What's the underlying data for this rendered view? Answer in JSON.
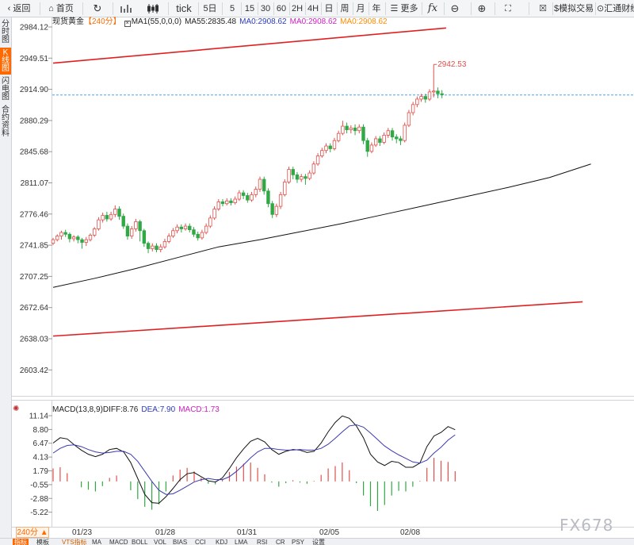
{
  "toolbar": {
    "back": "返回",
    "home": "首页",
    "tick": "tick",
    "periods": [
      "5日",
      "5",
      "15",
      "30",
      "60",
      "2H",
      "4H",
      "日",
      "周",
      "月",
      "年"
    ],
    "more": "更多",
    "sim_trade": "模拟交易",
    "exchange": "汇通财经"
  },
  "sidetabs": [
    "分时图",
    "K线图",
    "闪电图",
    "合约资料"
  ],
  "main_info": {
    "symbol": "现货黄金",
    "period": "【240分】",
    "ma_params": "MA1(55,0,0,0)",
    "ma55": "MA55:2835.48",
    "ma0_a": "MA0:2908.62",
    "ma0_b": "MA0:2908.62",
    "ma0_c": "MA0:2908.62"
  },
  "macd_info": {
    "title": "MACD(13,8,9)",
    "diff": "DIFF:8.76",
    "dea": "DEA:7.90",
    "macd": "MACD:1.73"
  },
  "date_labels": [
    "01/23",
    "01/28",
    "01/31",
    "02/05",
    "02/08"
  ],
  "period_badge": "240分 ▲",
  "bottom_tabs": [
    "指标",
    "模板",
    "VTS指标",
    "MA",
    "MACD",
    "BOLL",
    "VOL",
    "BIAS",
    "CCI",
    "KDJ",
    "LMA",
    "RSI",
    "CR",
    "PSY",
    "设置"
  ],
  "watermark": "FX678",
  "colors": {
    "up": "#e0504a",
    "down": "#31a846",
    "ma55": "#111111",
    "channel": "#e02020",
    "dashed": "#4aa3e8",
    "dea": "#3a3ab0",
    "macd_label": "#d020c0",
    "ma0": "#ff8c00"
  },
  "chart_data": [
    {
      "type": "candlestick",
      "title": "现货黄金",
      "y_ticks": [
        2984.12,
        2949.51,
        2914.9,
        2880.29,
        2845.68,
        2811.07,
        2776.46,
        2741.85,
        2707.25,
        2672.64,
        2638.03,
        2603.42
      ],
      "ylim": [
        2582,
        2998
      ],
      "x_labels": [
        "01/23",
        "01/28",
        "01/31",
        "02/05",
        "02/08"
      ],
      "annotation": {
        "label": "2942.53",
        "value": 2942.53
      },
      "last_price": 2908.62,
      "channel": {
        "upper": [
          [
            0,
            2944
          ],
          [
            95,
            2983
          ]
        ],
        "lower": [
          [
            0,
            2641
          ],
          [
            128,
            2679
          ]
        ]
      },
      "candles": [
        [
          2744,
          2748,
          2742,
          2750
        ],
        [
          2748,
          2752,
          2746,
          2754
        ],
        [
          2752,
          2756,
          2748,
          2758
        ],
        [
          2756,
          2754,
          2751,
          2759
        ],
        [
          2754,
          2749,
          2745,
          2756
        ],
        [
          2749,
          2751,
          2746,
          2753
        ],
        [
          2751,
          2748,
          2744,
          2753
        ],
        [
          2748,
          2745,
          2738,
          2750
        ],
        [
          2745,
          2748,
          2741,
          2751
        ],
        [
          2748,
          2753,
          2746,
          2755
        ],
        [
          2753,
          2760,
          2751,
          2762
        ],
        [
          2760,
          2770,
          2758,
          2773
        ],
        [
          2770,
          2775,
          2767,
          2778
        ],
        [
          2775,
          2771,
          2768,
          2779
        ],
        [
          2771,
          2776,
          2769,
          2779
        ],
        [
          2776,
          2782,
          2773,
          2786
        ],
        [
          2782,
          2774,
          2770,
          2785
        ],
        [
          2774,
          2763,
          2760,
          2777
        ],
        [
          2763,
          2752,
          2748,
          2766
        ],
        [
          2752,
          2760,
          2749,
          2763
        ],
        [
          2760,
          2768,
          2757,
          2771
        ],
        [
          2768,
          2758,
          2746,
          2770
        ],
        [
          2758,
          2744,
          2740,
          2760
        ],
        [
          2744,
          2738,
          2733,
          2746
        ],
        [
          2738,
          2741,
          2735,
          2744
        ],
        [
          2741,
          2737,
          2734,
          2744
        ],
        [
          2737,
          2740,
          2734,
          2743
        ],
        [
          2740,
          2746,
          2738,
          2749
        ],
        [
          2746,
          2752,
          2744,
          2755
        ],
        [
          2752,
          2758,
          2750,
          2761
        ],
        [
          2758,
          2762,
          2755,
          2765
        ],
        [
          2762,
          2760,
          2756,
          2765
        ],
        [
          2760,
          2763,
          2758,
          2766
        ],
        [
          2763,
          2759,
          2756,
          2766
        ],
        [
          2759,
          2754,
          2751,
          2762
        ],
        [
          2754,
          2750,
          2747,
          2757
        ],
        [
          2750,
          2756,
          2748,
          2759
        ],
        [
          2756,
          2763,
          2754,
          2766
        ],
        [
          2763,
          2772,
          2761,
          2775
        ],
        [
          2772,
          2782,
          2770,
          2785
        ],
        [
          2782,
          2790,
          2780,
          2793
        ],
        [
          2790,
          2788,
          2785,
          2793
        ],
        [
          2788,
          2791,
          2786,
          2794
        ],
        [
          2791,
          2789,
          2786,
          2794
        ],
        [
          2789,
          2793,
          2787,
          2796
        ],
        [
          2793,
          2800,
          2791,
          2803
        ],
        [
          2800,
          2797,
          2793,
          2803
        ],
        [
          2797,
          2792,
          2789,
          2800
        ],
        [
          2792,
          2798,
          2790,
          2801
        ],
        [
          2798,
          2804,
          2795,
          2807
        ],
        [
          2804,
          2815,
          2801,
          2818
        ],
        [
          2815,
          2802,
          2798,
          2818
        ],
        [
          2802,
          2788,
          2784,
          2805
        ],
        [
          2788,
          2776,
          2772,
          2791
        ],
        [
          2776,
          2785,
          2773,
          2788
        ],
        [
          2785,
          2798,
          2782,
          2801
        ],
        [
          2798,
          2812,
          2796,
          2815
        ],
        [
          2812,
          2826,
          2810,
          2829
        ],
        [
          2826,
          2820,
          2815,
          2829
        ],
        [
          2820,
          2815,
          2811,
          2823
        ],
        [
          2815,
          2818,
          2812,
          2821
        ],
        [
          2818,
          2816,
          2809,
          2821
        ],
        [
          2816,
          2822,
          2814,
          2825
        ],
        [
          2822,
          2832,
          2820,
          2835
        ],
        [
          2832,
          2841,
          2830,
          2844
        ],
        [
          2841,
          2847,
          2839,
          2850
        ],
        [
          2847,
          2852,
          2844,
          2855
        ],
        [
          2852,
          2849,
          2845,
          2855
        ],
        [
          2849,
          2858,
          2847,
          2861
        ],
        [
          2858,
          2866,
          2856,
          2869
        ],
        [
          2866,
          2874,
          2864,
          2880
        ],
        [
          2874,
          2870,
          2866,
          2878
        ],
        [
          2870,
          2872,
          2866,
          2875
        ],
        [
          2872,
          2869,
          2864,
          2876
        ],
        [
          2869,
          2873,
          2866,
          2876
        ],
        [
          2873,
          2858,
          2854,
          2876
        ],
        [
          2858,
          2846,
          2840,
          2861
        ],
        [
          2846,
          2853,
          2844,
          2856
        ],
        [
          2853,
          2860,
          2851,
          2863
        ],
        [
          2860,
          2856,
          2852,
          2863
        ],
        [
          2856,
          2864,
          2854,
          2867
        ],
        [
          2864,
          2869,
          2861,
          2872
        ],
        [
          2869,
          2862,
          2858,
          2872
        ],
        [
          2862,
          2860,
          2855,
          2865
        ],
        [
          2860,
          2858,
          2853,
          2863
        ],
        [
          2858,
          2875,
          2856,
          2878
        ],
        [
          2875,
          2889,
          2873,
          2892
        ],
        [
          2889,
          2898,
          2886,
          2901
        ],
        [
          2898,
          2904,
          2895,
          2907
        ],
        [
          2904,
          2907,
          2901,
          2910
        ],
        [
          2907,
          2904,
          2900,
          2910
        ],
        [
          2904,
          2912,
          2902,
          2915
        ],
        [
          2912,
          2913,
          2906,
          2942.53
        ],
        [
          2913,
          2910,
          2905,
          2917
        ],
        [
          2910,
          2909,
          2905,
          2914
        ]
      ],
      "ma55": [
        [
          0,
          2695
        ],
        [
          10,
          2705
        ],
        [
          20,
          2716
        ],
        [
          30,
          2728
        ],
        [
          40,
          2740
        ],
        [
          50,
          2748
        ],
        [
          60,
          2757
        ],
        [
          70,
          2766
        ],
        [
          80,
          2776
        ],
        [
          90,
          2786
        ],
        [
          100,
          2796
        ],
        [
          110,
          2806
        ],
        [
          120,
          2817
        ],
        [
          130,
          2832
        ]
      ]
    },
    {
      "type": "macd",
      "title": "MACD(13,8,9)",
      "y_ticks": [
        11.14,
        8.8,
        6.47,
        4.13,
        1.79,
        -0.55,
        -2.88,
        -5.22
      ],
      "ylim": [
        -7.5,
        12.3
      ],
      "diff": [
        6.5,
        7.4,
        7.2,
        6.2,
        5.3,
        4.6,
        4.2,
        4.6,
        5.4,
        5.6,
        5.0,
        3.2,
        0.5,
        -2.2,
        -3.6,
        -3.7,
        -2.6,
        -1.2,
        0.3,
        1.3,
        1.5,
        0.8,
        0.1,
        -0.1,
        0.6,
        2.2,
        4.0,
        5.5,
        6.8,
        7.3,
        6.7,
        5.4,
        4.6,
        5.1,
        5.4,
        5.3,
        4.9,
        5.1,
        6.5,
        8.4,
        10.0,
        11.1,
        10.7,
        9.4,
        7.4,
        4.6,
        3.3,
        2.7,
        3.4,
        3.2,
        2.4,
        2.4,
        3.1,
        5.9,
        7.7,
        8.3,
        9.3,
        8.76
      ],
      "dea": [
        4.8,
        5.6,
        6.1,
        6.2,
        5.9,
        5.4,
        5.0,
        4.8,
        4.9,
        5.1,
        5.1,
        4.6,
        3.4,
        1.7,
        0.0,
        -1.5,
        -2.2,
        -2.1,
        -1.5,
        -0.8,
        -0.1,
        0.3,
        0.5,
        0.3,
        0.3,
        0.8,
        1.7,
        2.8,
        4.0,
        5.0,
        5.6,
        5.6,
        5.4,
        5.3,
        5.3,
        5.4,
        5.3,
        5.3,
        5.6,
        6.3,
        7.3,
        8.4,
        9.4,
        9.6,
        9.2,
        8.2,
        7.1,
        6.0,
        5.2,
        4.5,
        3.9,
        3.3,
        3.1,
        3.6,
        4.8,
        5.8,
        7.0,
        7.9
      ],
      "histogram": [
        2.2,
        2.4,
        1.4,
        0.0,
        -1.0,
        -1.4,
        -1.7,
        -0.8,
        0.6,
        1.0,
        0.0,
        -1.5,
        -3.0,
        -4.3,
        -4.8,
        -3.9,
        -1.7,
        1.0,
        2.0,
        2.3,
        1.7,
        0.6,
        -0.4,
        -0.5,
        0.4,
        1.6,
        2.5,
        3.0,
        3.2,
        2.3,
        1.2,
        -0.2,
        -0.9,
        -0.3,
        0.2,
        -0.2,
        -0.4,
        0.1,
        1.1,
        2.2,
        2.6,
        3.2,
        1.9,
        -0.3,
        -2.4,
        -4.2,
        -5.0,
        -4.0,
        -2.4,
        -1.6,
        -1.7,
        -0.9,
        0.1,
        2.3,
        4.0,
        3.5,
        3.3,
        1.73
      ]
    }
  ]
}
